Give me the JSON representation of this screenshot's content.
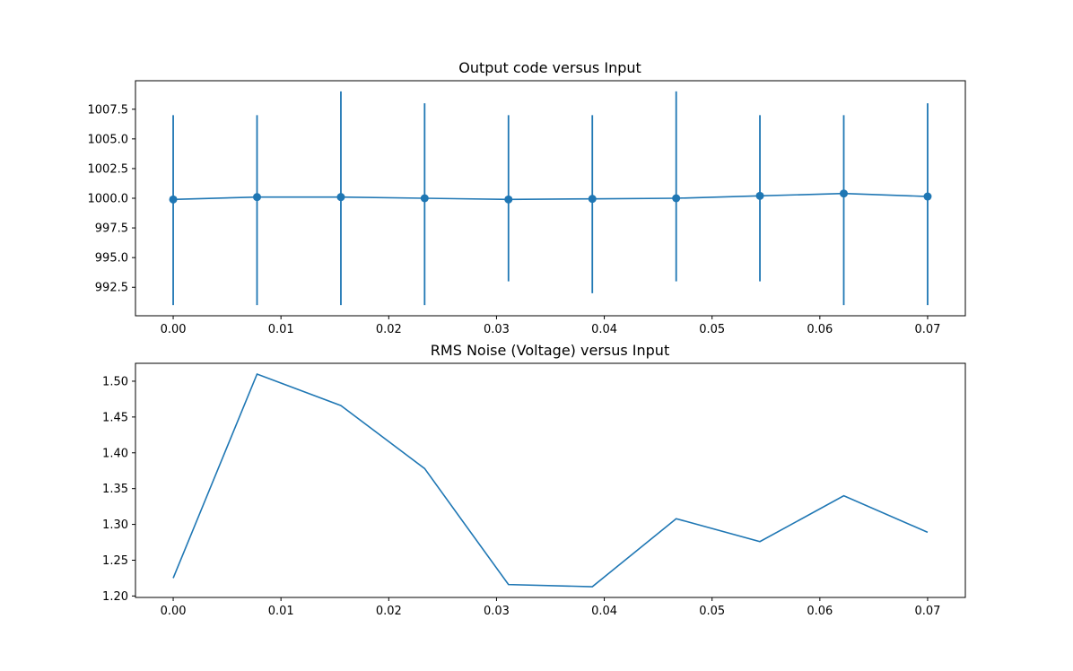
{
  "chart_data": [
    {
      "type": "line",
      "variant": "errorbar",
      "title": "Output code versus Input",
      "xlabel": "",
      "ylabel": "",
      "x": [
        0.0,
        0.00778,
        0.01556,
        0.02333,
        0.03111,
        0.03889,
        0.04667,
        0.05444,
        0.06222,
        0.07
      ],
      "y": [
        999.9,
        1000.1,
        1000.1,
        1000.0,
        999.9,
        999.95,
        1000.0,
        1000.2,
        1000.4,
        1000.15
      ],
      "y_min": [
        991,
        991,
        991,
        991,
        993,
        992,
        993,
        993,
        991,
        991
      ],
      "y_max": [
        1007,
        1007,
        1009,
        1008,
        1007,
        1007,
        1009,
        1007,
        1007,
        1008
      ],
      "xlim": [
        -0.0035,
        0.0735
      ],
      "ylim": [
        990.1,
        1009.9
      ],
      "x_ticks": [
        0.0,
        0.01,
        0.02,
        0.03,
        0.04,
        0.05,
        0.06,
        0.07
      ],
      "x_tick_labels": [
        "0.00",
        "0.01",
        "0.02",
        "0.03",
        "0.04",
        "0.05",
        "0.06",
        "0.07"
      ],
      "y_ticks": [
        992.5,
        995.0,
        997.5,
        1000.0,
        1002.5,
        1005.0,
        1007.5
      ],
      "y_tick_labels": [
        "992.5",
        "995.0",
        "997.5",
        "1000.0",
        "1002.5",
        "1005.0",
        "1007.5"
      ],
      "markers": true,
      "grid": false,
      "color": "#1f77b4"
    },
    {
      "type": "line",
      "title": "RMS Noise (Voltage) versus Input",
      "xlabel": "",
      "ylabel": "",
      "x": [
        0.0,
        0.00778,
        0.01556,
        0.02333,
        0.03111,
        0.03889,
        0.04667,
        0.05444,
        0.06222,
        0.07
      ],
      "y": [
        1.225,
        1.51,
        1.466,
        1.378,
        1.216,
        1.213,
        1.308,
        1.276,
        1.34,
        1.289
      ],
      "xlim": [
        -0.0035,
        0.0735
      ],
      "ylim": [
        1.198,
        1.525
      ],
      "x_ticks": [
        0.0,
        0.01,
        0.02,
        0.03,
        0.04,
        0.05,
        0.06,
        0.07
      ],
      "x_tick_labels": [
        "0.00",
        "0.01",
        "0.02",
        "0.03",
        "0.04",
        "0.05",
        "0.06",
        "0.07"
      ],
      "y_ticks": [
        1.2,
        1.25,
        1.3,
        1.35,
        1.4,
        1.45,
        1.5
      ],
      "y_tick_labels": [
        "1.20",
        "1.25",
        "1.30",
        "1.35",
        "1.40",
        "1.45",
        "1.50"
      ],
      "markers": false,
      "grid": false,
      "color": "#1f77b4"
    }
  ]
}
